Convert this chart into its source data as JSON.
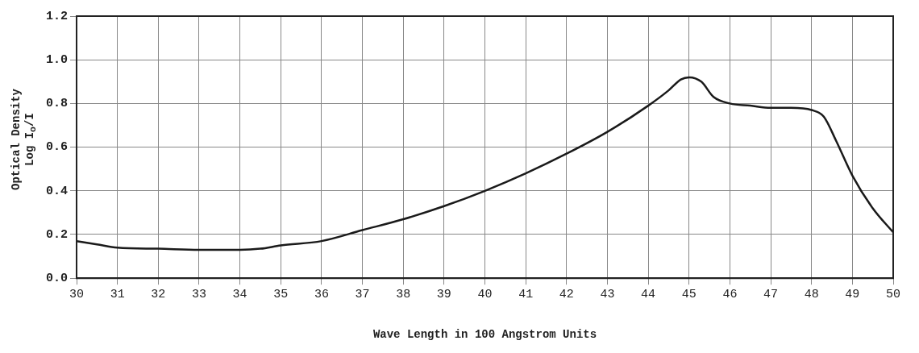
{
  "chart_data": {
    "type": "line",
    "xlabel": "Wave Length in 100 Angstrom Units",
    "ylabel": "Optical Density\nLog I$_{o}$/I",
    "x": [
      30,
      30.5,
      31,
      32,
      33,
      34,
      34.5,
      35,
      36,
      37,
      38,
      39,
      40,
      41,
      42,
      43,
      44,
      44.5,
      44.8,
      45,
      45.3,
      45.6,
      46,
      46.5,
      47,
      47.5,
      48,
      48.3,
      48.6,
      49,
      49.5,
      50
    ],
    "series": [
      {
        "color": "#1a1a1a",
        "values": [
          0.17,
          0.155,
          0.14,
          0.135,
          0.13,
          0.13,
          0.135,
          0.15,
          0.17,
          0.22,
          0.27,
          0.33,
          0.4,
          0.48,
          0.57,
          0.67,
          0.79,
          0.86,
          0.91,
          0.92,
          0.9,
          0.83,
          0.8,
          0.79,
          0.78,
          0.78,
          0.77,
          0.74,
          0.63,
          0.47,
          0.32,
          0.21
        ]
      }
    ],
    "xlim": [
      30,
      50
    ],
    "xticks": [
      30,
      31,
      32,
      33,
      34,
      35,
      36,
      37,
      38,
      39,
      40,
      41,
      42,
      43,
      44,
      45,
      46,
      47,
      48,
      49,
      50
    ],
    "ylim": [
      0,
      1.2
    ],
    "yticks": [
      {
        "value": 0,
        "label": "0.0"
      },
      0.2,
      0.4,
      0.6,
      0.8,
      {
        "value": 1,
        "label": "1.0"
      },
      {
        "value": 1.2,
        "label": "1.2"
      }
    ],
    "grid": true,
    "legend": false,
    "marker": "none",
    "line_style": "solid"
  }
}
